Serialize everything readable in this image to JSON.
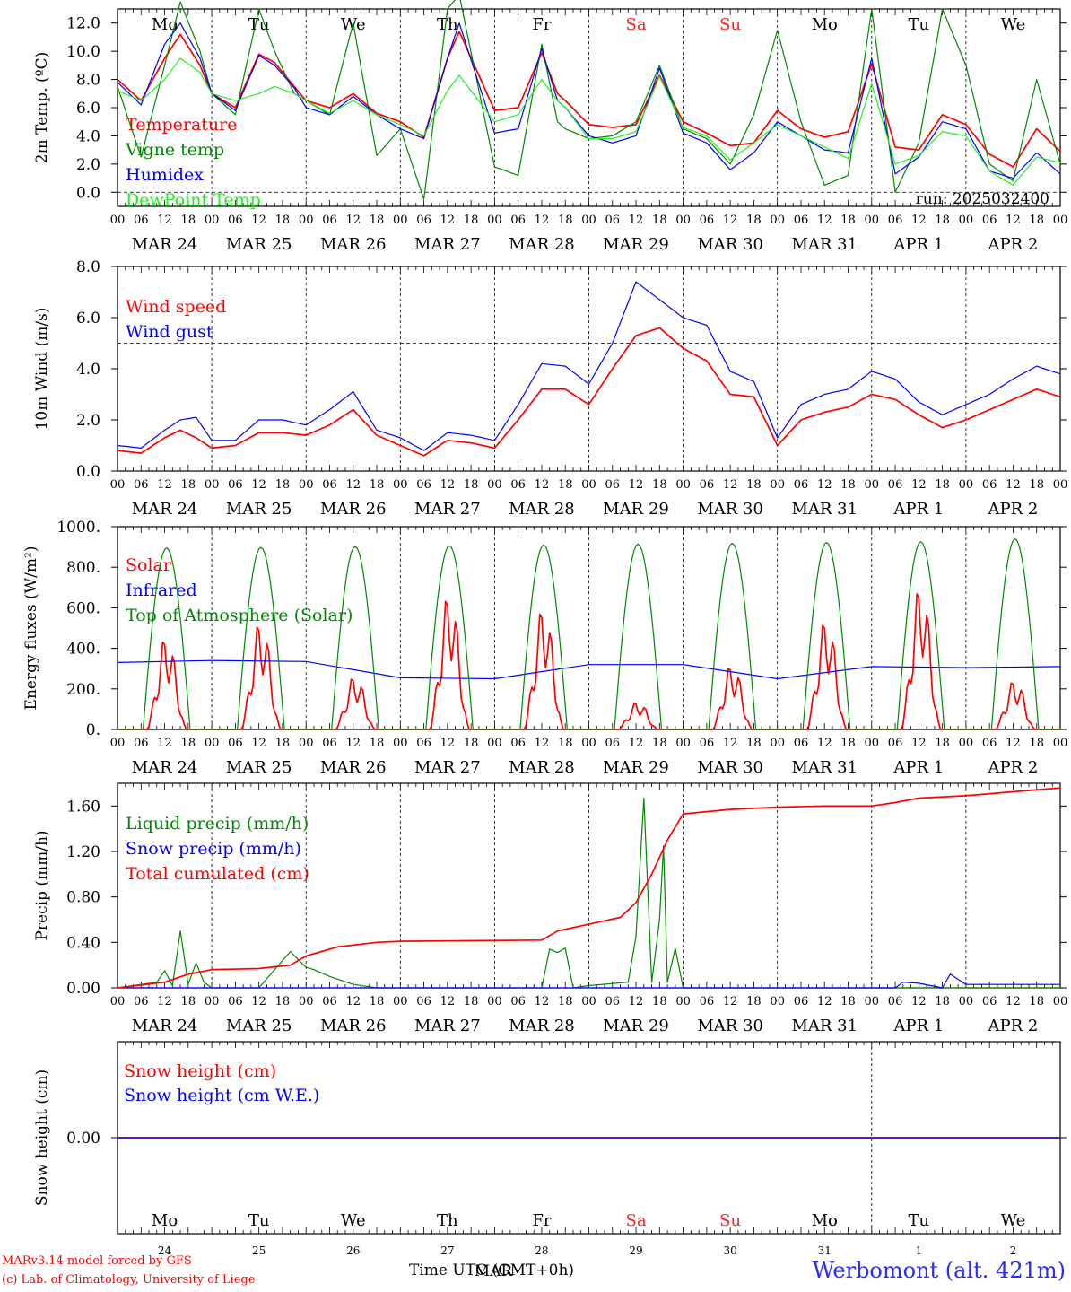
{
  "days": [
    {
      "abbr": "Mo",
      "weekend": false,
      "date": "MAR 24",
      "daynum": "24"
    },
    {
      "abbr": "Tu",
      "weekend": false,
      "date": "MAR 25",
      "daynum": "25"
    },
    {
      "abbr": "We",
      "weekend": false,
      "date": "MAR 26",
      "daynum": "26"
    },
    {
      "abbr": "Th",
      "weekend": false,
      "date": "MAR 27",
      "daynum": "27"
    },
    {
      "abbr": "Fr",
      "weekend": false,
      "date": "MAR 28",
      "daynum": "28"
    },
    {
      "abbr": "Sa",
      "weekend": true,
      "date": "MAR 29",
      "daynum": "29"
    },
    {
      "abbr": "Su",
      "weekend": true,
      "date": "MAR 30",
      "daynum": "30"
    },
    {
      "abbr": "Mo",
      "weekend": false,
      "date": "MAR 31",
      "daynum": "31"
    },
    {
      "abbr": "Tu",
      "weekend": false,
      "date": "APR  1",
      "daynum": "1"
    },
    {
      "abbr": "We",
      "weekend": false,
      "date": "APR  2",
      "daynum": "2"
    }
  ],
  "hour_ticks": [
    "00",
    "06",
    "12",
    "18"
  ],
  "colors": {
    "red": "#ff0000",
    "green": "#008800",
    "blue": "#0000ff",
    "lightgreen": "#22ee22",
    "weekend": "#ff2020",
    "station": "#2a2aff"
  },
  "chart_data": [
    {
      "type": "line",
      "ylabel": "2m Temp. (ºC)",
      "ylim": [
        -1.0,
        13.0
      ],
      "ytick_labels": [
        "12.0",
        "10.0",
        "8.0",
        "6.0",
        "4.0",
        "2.0",
        "0.0"
      ],
      "yticks": [
        12,
        10,
        8,
        6,
        4,
        2,
        0
      ],
      "ref_line": 0,
      "annotation": "run: 2025032400",
      "show_day_abbr": true,
      "x_hours": [
        0,
        6,
        12,
        16,
        21,
        24,
        30,
        36,
        40,
        45,
        48,
        54,
        60,
        66,
        72,
        78,
        84,
        87,
        96,
        102,
        108,
        112,
        114,
        120,
        126,
        132,
        138,
        144,
        150,
        156,
        162,
        168,
        174,
        180,
        186,
        192,
        198,
        204,
        210,
        216,
        222,
        228,
        234,
        240
      ],
      "series": [
        {
          "name": "Temperature",
          "color": "red",
          "values": [
            8.0,
            6.5,
            9.5,
            11.2,
            9.0,
            7.0,
            6.0,
            9.8,
            9.2,
            7.5,
            6.5,
            6.0,
            7.0,
            5.6,
            5.0,
            3.9,
            9.5,
            11.4,
            5.8,
            6.0,
            9.9,
            7.0,
            6.5,
            4.8,
            4.6,
            4.8,
            8.3,
            5.0,
            4.2,
            3.3,
            3.5,
            5.8,
            4.5,
            3.9,
            4.3,
            9.1,
            3.2,
            3.0,
            5.5,
            4.8,
            2.7,
            1.8,
            4.5,
            2.9
          ]
        },
        {
          "name": "Vigne temp",
          "color": "green",
          "values": [
            7.5,
            2.5,
            9.0,
            13.5,
            10.0,
            7.0,
            5.5,
            13.0,
            10.0,
            7.0,
            6.5,
            5.5,
            12.0,
            2.6,
            4.5,
            -0.5,
            13.0,
            14.0,
            1.8,
            1.2,
            10.5,
            5.0,
            4.5,
            3.8,
            4.0,
            5.0,
            9.0,
            4.5,
            3.8,
            2.0,
            5.5,
            11.5,
            5.0,
            0.5,
            1.2,
            13.0,
            0.0,
            3.5,
            13.0,
            9.0,
            2.0,
            0.8,
            8.0,
            2.0
          ]
        },
        {
          "name": "Humidex",
          "color": "blue",
          "values": [
            7.8,
            6.2,
            10.5,
            12.0,
            9.5,
            7.0,
            5.8,
            9.7,
            9.0,
            7.4,
            6.0,
            5.5,
            6.8,
            5.5,
            4.5,
            3.8,
            9.5,
            12.0,
            4.2,
            4.5,
            10.2,
            6.5,
            6.0,
            4.0,
            3.5,
            4.0,
            8.8,
            4.2,
            3.5,
            1.6,
            2.8,
            5.0,
            4.0,
            3.0,
            2.8,
            9.5,
            1.3,
            2.5,
            5.0,
            4.5,
            1.5,
            1.0,
            2.8,
            1.3
          ]
        },
        {
          "name": "DewPoint Temp",
          "color": "lightgreen",
          "values": [
            7.2,
            6.5,
            8.0,
            9.5,
            8.5,
            7.0,
            6.5,
            7.0,
            7.5,
            7.0,
            6.5,
            5.6,
            6.5,
            5.5,
            4.8,
            4.0,
            7.2,
            8.3,
            5.0,
            5.5,
            8.0,
            6.5,
            6.0,
            3.8,
            3.8,
            4.3,
            8.2,
            4.6,
            4.0,
            2.3,
            3.5,
            4.8,
            4.0,
            3.2,
            2.4,
            7.7,
            2.0,
            2.6,
            4.3,
            4.0,
            1.5,
            0.5,
            2.5,
            2.1
          ]
        }
      ]
    },
    {
      "type": "line",
      "ylabel": "10m Wind (m/s)",
      "ylim": [
        0,
        8.0
      ],
      "ytick_labels": [
        "8.0",
        "6.0",
        "4.0",
        "2.0",
        "0.0"
      ],
      "yticks": [
        8,
        6,
        4,
        2,
        0
      ],
      "ref_line": 5,
      "x_hours": [
        0,
        6,
        12,
        16,
        20,
        24,
        30,
        36,
        42,
        48,
        54,
        60,
        66,
        72,
        78,
        84,
        90,
        96,
        102,
        108,
        114,
        120,
        126,
        132,
        138,
        144,
        150,
        156,
        162,
        168,
        174,
        180,
        186,
        192,
        198,
        204,
        210,
        216,
        222,
        228,
        234,
        240
      ],
      "series": [
        {
          "name": "Wind speed",
          "color": "red",
          "values": [
            0.8,
            0.7,
            1.3,
            1.6,
            1.3,
            0.9,
            1.0,
            1.5,
            1.5,
            1.4,
            1.8,
            2.4,
            1.4,
            1.0,
            0.6,
            1.2,
            1.1,
            0.9,
            2.0,
            3.2,
            3.2,
            2.6,
            4.0,
            5.3,
            5.6,
            4.8,
            4.3,
            3.0,
            2.9,
            1.0,
            2.0,
            2.3,
            2.5,
            3.0,
            2.8,
            2.2,
            1.7,
            2.0,
            2.4,
            2.8,
            3.2,
            2.9
          ]
        },
        {
          "name": "Wind gust",
          "color": "blue",
          "values": [
            1.0,
            0.9,
            1.6,
            2.0,
            2.1,
            1.2,
            1.2,
            2.0,
            2.0,
            1.8,
            2.4,
            3.1,
            1.6,
            1.3,
            0.8,
            1.5,
            1.4,
            1.2,
            2.6,
            4.2,
            4.1,
            3.4,
            5.0,
            7.4,
            6.7,
            6.0,
            5.7,
            3.9,
            3.5,
            1.3,
            2.6,
            3.0,
            3.2,
            3.9,
            3.6,
            2.7,
            2.2,
            2.6,
            3.0,
            3.6,
            4.1,
            3.8
          ]
        }
      ]
    },
    {
      "type": "line",
      "ylabel": "Energy fluxes (W/m²)",
      "ylim": [
        0,
        1000
      ],
      "ytick_labels": [
        "1000.",
        "800.",
        "600.",
        "400.",
        "200.",
        "0."
      ],
      "yticks": [
        1000,
        800,
        600,
        400,
        200,
        0
      ],
      "x_hours": [
        0,
        24,
        48,
        72,
        96,
        120,
        144,
        168,
        192,
        216,
        240
      ],
      "series": [
        {
          "name": "Solar",
          "color": "red",
          "daily_peak": [
            470,
            550,
            270,
            690,
            620,
            140,
            330,
            560,
            730,
            250
          ]
        },
        {
          "name": "Infrared",
          "color": "blue",
          "values": [
            330,
            340,
            335,
            255,
            250,
            320,
            320,
            250,
            310,
            305,
            310
          ]
        },
        {
          "name": "Top of Atmosphere (Solar)",
          "color": "green",
          "daily_peak": [
            895,
            898,
            902,
            906,
            910,
            914,
            918,
            922,
            926,
            940
          ]
        }
      ]
    },
    {
      "type": "line",
      "ylabel": "Precip (mm/h)",
      "ylim": [
        0,
        1.8
      ],
      "ytick_labels": [
        "1.60",
        "1.20",
        "0.80",
        "0.40",
        "0.00"
      ],
      "yticks": [
        1.6,
        1.2,
        0.8,
        0.4,
        0
      ],
      "series": [
        {
          "name": "Liquid precip (mm/h)",
          "color": "green",
          "x_hours": [
            0,
            10,
            12,
            14,
            16,
            18,
            20,
            22,
            24,
            36,
            44,
            46,
            48,
            50,
            54,
            60,
            66,
            72,
            108,
            110,
            112,
            114,
            116,
            120,
            130,
            132,
            134,
            136,
            138,
            139,
            140,
            142,
            144,
            146,
            150,
            240
          ],
          "values": [
            0,
            0.05,
            0.15,
            0.02,
            0.5,
            0.03,
            0.22,
            0.05,
            0.0,
            0.0,
            0.32,
            0.25,
            0.18,
            0.16,
            0.1,
            0.03,
            0.0,
            0.0,
            0.0,
            0.34,
            0.31,
            0.35,
            0.0,
            0.02,
            0.05,
            0.45,
            1.67,
            0.05,
            0.6,
            1.25,
            0.05,
            0.35,
            0.0,
            0.0,
            0.0,
            0.0
          ]
        },
        {
          "name": "Snow precip (mm/h)",
          "color": "blue",
          "x_hours": [
            0,
            198,
            200,
            204,
            210,
            212,
            216,
            240
          ],
          "values": [
            0.0,
            0.0,
            0.05,
            0.04,
            0.0,
            0.12,
            0.03,
            0.03
          ]
        },
        {
          "name": "Total cumulated (cm)",
          "color": "red",
          "x_hours": [
            0,
            12,
            18,
            24,
            36,
            44,
            48,
            56,
            66,
            72,
            108,
            112,
            120,
            128,
            132,
            136,
            140,
            144,
            156,
            168,
            180,
            192,
            198,
            204,
            216,
            240
          ],
          "values": [
            0.0,
            0.05,
            0.12,
            0.16,
            0.17,
            0.2,
            0.28,
            0.36,
            0.4,
            0.41,
            0.42,
            0.5,
            0.56,
            0.62,
            0.75,
            1.0,
            1.3,
            1.53,
            1.57,
            1.59,
            1.6,
            1.6,
            1.63,
            1.67,
            1.69,
            1.76
          ]
        }
      ]
    },
    {
      "type": "line",
      "ylabel": "Snow height (cm)",
      "ylim": [
        -1,
        1
      ],
      "ytick_labels": [
        "0.00"
      ],
      "yticks": [
        0
      ],
      "series": [
        {
          "name": "Snow height (cm)",
          "color": "red",
          "x_hours": [
            0,
            240
          ],
          "values": [
            0,
            0
          ]
        },
        {
          "name": "Snow height (cm W.E.)",
          "color": "blue",
          "x_hours": [
            0,
            240
          ],
          "values": [
            0,
            0
          ]
        }
      ]
    }
  ],
  "footer": {
    "model_line": "MARv3.14 model forced by GFS",
    "credit_line": "(c) Lab. of Climatology, University of Liege",
    "time_label": "Time UTC (GMT+0h)",
    "mar_label": "MAR",
    "station": "Werbomont (alt. 421m)"
  }
}
